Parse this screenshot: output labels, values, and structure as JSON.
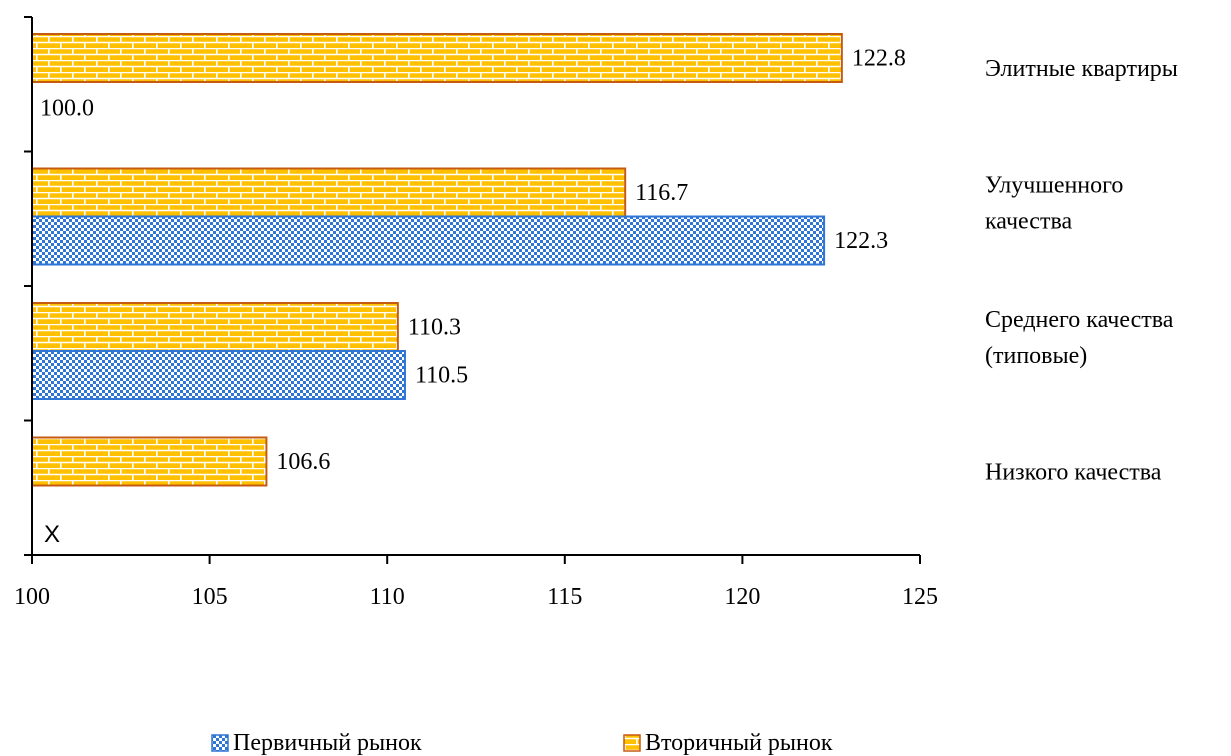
{
  "chart_data": {
    "type": "bar",
    "orientation": "horizontal",
    "categories": [
      [
        "Элитные квартиры"
      ],
      [
        "Улучшенного",
        "качества"
      ],
      [
        "Среднего качества",
        "(типовые)"
      ],
      [
        "Низкого качества"
      ]
    ],
    "series": [
      {
        "name": "Первичный рынок",
        "values": [
          100.0,
          122.3,
          110.5,
          null
        ],
        "color": "#2e75d6",
        "pattern": "checker"
      },
      {
        "name": "Вторичный рынок",
        "values": [
          122.8,
          116.7,
          110.3,
          106.6
        ],
        "color": "#c55a11",
        "fill": "#ffc000",
        "pattern": "brick"
      }
    ],
    "xlim": [
      100,
      125
    ],
    "xticks": [
      100,
      105,
      110,
      115,
      120,
      125
    ],
    "grid": false,
    "legend_position": "bottom",
    "annotations": [
      "X"
    ]
  }
}
